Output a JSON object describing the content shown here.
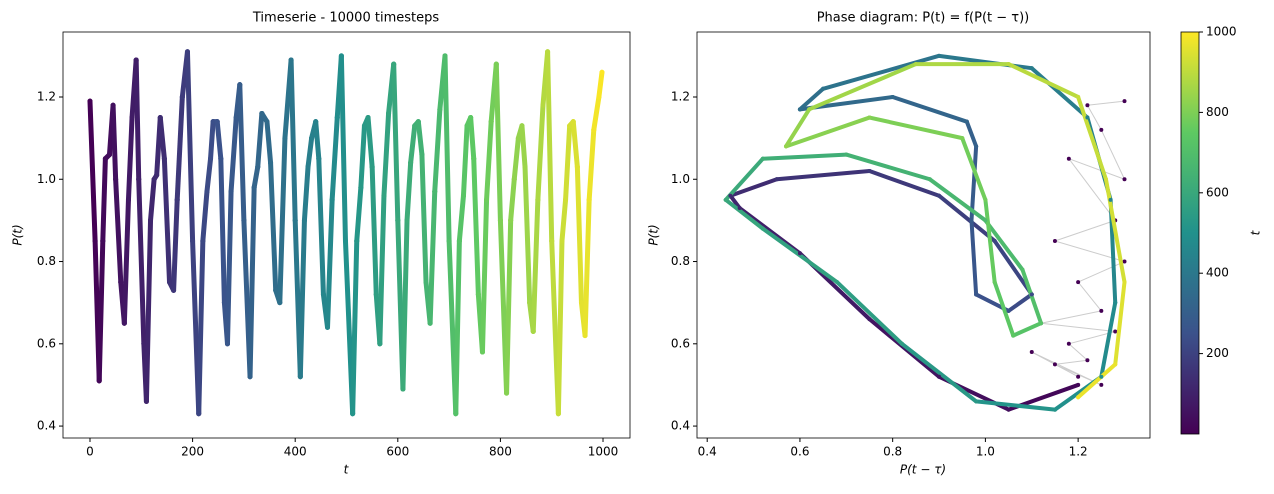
{
  "chart_data": [
    {
      "type": "line",
      "title": "Timeserie - 10000 timesteps",
      "x_label": "t",
      "y_label": "P(t)",
      "colormap": [
        "#440154",
        "#3b528b",
        "#21918c",
        "#5ec962",
        "#fde725"
      ],
      "xlim": [
        -52.6,
        1052.6
      ],
      "ylim": [
        0.371,
        1.358
      ],
      "xticks": [
        0,
        200,
        400,
        600,
        800,
        1000
      ],
      "yticks": [
        0.4,
        0.6,
        0.8,
        {
          "value": 1,
          "label": "1.0"
        },
        1.2
      ],
      "x": [
        0,
        10,
        18,
        25,
        30,
        38,
        45,
        50,
        60,
        67,
        75,
        82,
        90,
        95,
        105,
        110,
        118,
        125,
        130,
        137,
        145,
        155,
        163,
        170,
        180,
        190,
        200,
        212,
        220,
        228,
        235,
        240,
        248,
        255,
        262,
        268,
        275,
        285,
        292,
        300,
        312,
        320,
        327,
        335,
        345,
        352,
        362,
        370,
        380,
        392,
        400,
        410,
        418,
        425,
        432,
        440,
        446,
        455,
        463,
        472,
        482,
        490,
        498,
        512,
        520,
        528,
        535,
        542,
        550,
        558,
        565,
        573,
        582,
        592,
        600,
        610,
        618,
        625,
        633,
        640,
        647,
        655,
        663,
        672,
        682,
        692,
        700,
        713,
        720,
        728,
        735,
        742,
        748,
        757,
        765,
        773,
        782,
        792,
        800,
        812,
        820,
        827,
        835,
        842,
        848,
        857,
        864,
        873,
        883,
        892,
        900,
        913,
        920,
        927,
        935,
        942,
        950,
        958,
        965,
        973,
        982,
        992,
        998
      ],
      "values": [
        1.19,
        0.85,
        0.51,
        0.85,
        1.05,
        1.06,
        1.18,
        1.0,
        0.75,
        0.65,
        0.95,
        1.15,
        1.29,
        1.0,
        0.6,
        0.46,
        0.9,
        1.0,
        1.01,
        1.15,
        1.05,
        0.75,
        0.73,
        0.95,
        1.2,
        1.31,
        0.85,
        0.43,
        0.85,
        0.97,
        1.05,
        1.14,
        1.14,
        1.05,
        0.7,
        0.6,
        0.97,
        1.15,
        1.23,
        0.9,
        0.52,
        0.98,
        1.03,
        1.16,
        1.14,
        1.04,
        0.73,
        0.7,
        1.1,
        1.29,
        0.9,
        0.52,
        0.9,
        1.03,
        1.1,
        1.14,
        1.05,
        0.72,
        0.64,
        0.95,
        1.15,
        1.3,
        0.85,
        0.43,
        0.85,
        0.98,
        1.13,
        1.15,
        1.03,
        0.72,
        0.6,
        0.96,
        1.16,
        1.28,
        0.9,
        0.49,
        0.9,
        1.04,
        1.13,
        1.14,
        1.06,
        0.75,
        0.65,
        0.97,
        1.17,
        1.3,
        0.85,
        0.43,
        0.85,
        0.96,
        1.13,
        1.15,
        1.05,
        0.72,
        0.58,
        0.95,
        1.14,
        1.28,
        0.9,
        0.48,
        0.9,
        1.0,
        1.1,
        1.13,
        1.03,
        0.7,
        0.63,
        0.95,
        1.18,
        1.31,
        0.85,
        0.43,
        0.85,
        0.95,
        1.13,
        1.14,
        1.03,
        0.7,
        0.62,
        0.95,
        1.12,
        1.2,
        1.26
      ]
    },
    {
      "type": "scatter",
      "title": "Phase diagram: P(t) = f(P(t − τ))",
      "x_label": "P(t − τ)",
      "y_label": "P(t)",
      "colormap": [
        "#440154",
        "#3b528b",
        "#21918c",
        "#5ec962",
        "#fde725"
      ],
      "xlim": [
        0.378,
        1.355
      ],
      "ylim": [
        0.371,
        1.358
      ],
      "xticks": [
        0.4,
        0.6,
        0.8,
        {
          "value": 1,
          "label": "1.0"
        },
        1.2
      ],
      "yticks": [
        0.4,
        0.6,
        0.8,
        {
          "value": 1,
          "label": "1.0"
        },
        1.2
      ],
      "x": [
        1.2,
        1.05,
        0.9,
        0.75,
        0.6,
        0.47,
        0.45,
        0.55,
        0.75,
        0.9,
        1.02,
        1.1,
        1.05,
        0.98,
        0.97,
        0.98,
        0.96,
        0.8,
        0.6,
        0.65,
        0.9,
        1.1,
        1.22,
        1.27,
        1.28,
        1.25,
        1.15,
        0.98,
        0.82,
        0.68,
        0.52,
        0.44,
        0.52,
        0.7,
        0.88,
        1.0,
        1.08,
        1.12,
        1.06,
        1.02,
        1.0,
        0.95,
        0.75,
        0.57,
        0.62,
        0.85,
        1.05,
        1.2,
        1.26,
        1.3,
        1.28,
        1.2
      ],
      "values": [
        0.5,
        0.44,
        0.52,
        0.66,
        0.82,
        0.93,
        0.96,
        1.0,
        1.02,
        0.96,
        0.85,
        0.72,
        0.68,
        0.72,
        0.9,
        1.08,
        1.14,
        1.2,
        1.17,
        1.22,
        1.3,
        1.27,
        1.15,
        0.95,
        0.7,
        0.52,
        0.44,
        0.46,
        0.6,
        0.75,
        0.88,
        0.95,
        1.05,
        1.06,
        1.0,
        0.9,
        0.78,
        0.65,
        0.62,
        0.75,
        0.95,
        1.1,
        1.15,
        1.08,
        1.17,
        1.28,
        1.28,
        1.2,
        1.0,
        0.75,
        0.55,
        0.47
      ],
      "t": [
        20,
        39,
        58,
        77,
        96,
        115,
        134,
        153,
        172,
        191,
        210,
        229,
        248,
        267,
        286,
        305,
        324,
        343,
        362,
        381,
        400,
        419,
        438,
        457,
        476,
        495,
        514,
        533,
        552,
        571,
        590,
        609,
        628,
        647,
        666,
        685,
        704,
        723,
        742,
        761,
        780,
        799,
        818,
        837,
        856,
        875,
        894,
        913,
        932,
        951,
        970,
        989
      ],
      "history": {
        "x": [
          1.3,
          1.22,
          1.25,
          1.3,
          1.18,
          1.28,
          1.15,
          1.3,
          1.2,
          1.25,
          1.12,
          1.28,
          1.18,
          1.22,
          1.15,
          1.25,
          1.1,
          1.2
        ],
        "values": [
          1.19,
          1.18,
          1.12,
          1.0,
          1.05,
          0.9,
          0.85,
          0.8,
          0.75,
          0.68,
          0.65,
          0.63,
          0.6,
          0.56,
          0.55,
          0.5,
          0.58,
          0.52
        ]
      },
      "colorbar": {
        "label": "t",
        "lim": [
          0,
          1000
        ],
        "ticks": [
          200,
          400,
          600,
          800,
          1000
        ]
      }
    }
  ]
}
